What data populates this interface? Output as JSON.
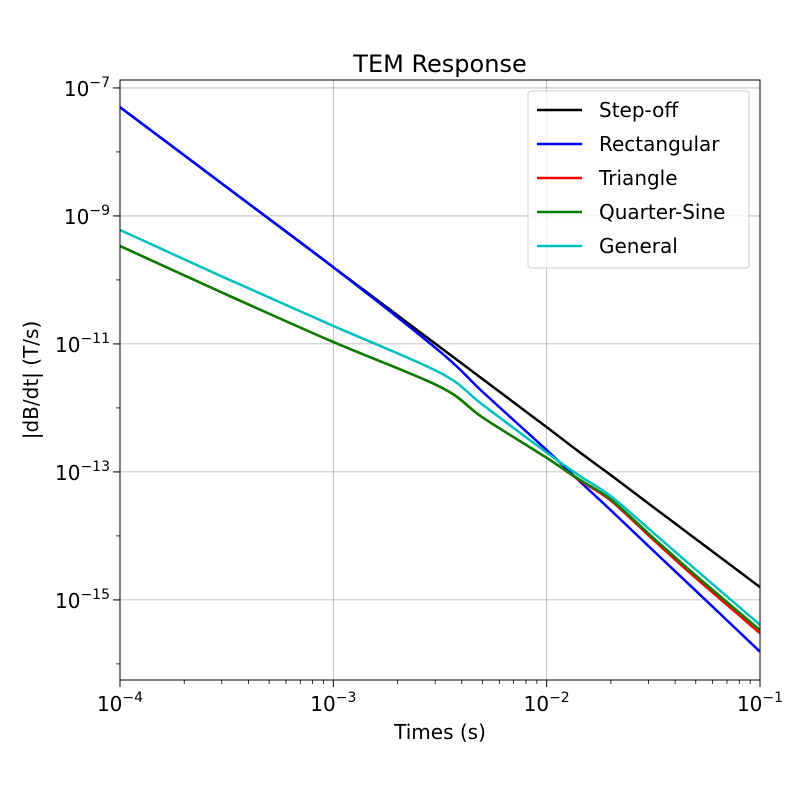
{
  "chart_data": {
    "type": "line",
    "title": "TEM Response",
    "xlabel": "Times (s)",
    "ylabel": "|dB/dt| (T/s)",
    "xscale": "log",
    "yscale": "log",
    "xlim": [
      0.0001,
      0.1
    ],
    "ylim": [
      5.6e-17,
      1.33e-07
    ],
    "grid": true,
    "legend_position": "top-right",
    "x_ticks": [
      {
        "value": 0.0001,
        "base": "10",
        "exp": "−4"
      },
      {
        "value": 0.001,
        "base": "10",
        "exp": "−3"
      },
      {
        "value": 0.01,
        "base": "10",
        "exp": "−2"
      },
      {
        "value": 0.1,
        "base": "10",
        "exp": "−1"
      }
    ],
    "y_ticks": [
      {
        "value": 1e-07,
        "base": "10",
        "exp": "−7"
      },
      {
        "value": 1e-09,
        "base": "10",
        "exp": "−9"
      },
      {
        "value": 1e-11,
        "base": "10",
        "exp": "−11"
      },
      {
        "value": 1e-13,
        "base": "10",
        "exp": "−13"
      },
      {
        "value": 1e-15,
        "base": "10",
        "exp": "−15"
      }
    ],
    "x": [
      0.0001,
      0.000316,
      0.001,
      0.00316,
      0.00501,
      0.01,
      0.0141,
      0.02,
      0.0316,
      0.0501,
      0.1
    ],
    "series": [
      {
        "name": "Step-off",
        "color": "#000000",
        "values": [
          5.01e-08,
          2.82e-09,
          1.58e-10,
          8.91e-12,
          2.82e-12,
          5.01e-13,
          2.09e-13,
          8.91e-14,
          2.82e-14,
          8.91e-15,
          1.58e-15
        ]
      },
      {
        "name": "Rectangular",
        "color": "#0000ff",
        "values": [
          5.01e-08,
          2.82e-09,
          1.58e-10,
          7.59e-12,
          1.78e-12,
          2.19e-13,
          7.41e-14,
          2.51e-14,
          5.89e-15,
          1.38e-15,
          1.55e-16
        ]
      },
      {
        "name": "Triangle",
        "color": "#ff0000",
        "values": [
          3.39e-10,
          5.89e-11,
          1.07e-11,
          2.14e-12,
          7.08e-13,
          1.66e-13,
          7.59e-14,
          3.55e-14,
          8.71e-15,
          2.19e-15,
          3.02e-16
        ]
      },
      {
        "name": "Quarter-Sine",
        "color": "#008000",
        "values": [
          3.39e-10,
          5.89e-11,
          1.07e-11,
          2.14e-12,
          7.08e-13,
          1.66e-13,
          7.76e-14,
          3.72e-14,
          9.33e-15,
          2.4e-15,
          3.39e-16
        ]
      },
      {
        "name": "General",
        "color": "#00bfbf",
        "values": [
          6.03e-10,
          1.05e-10,
          1.91e-11,
          3.55e-12,
          1.12e-12,
          2e-13,
          8.91e-14,
          4.17e-14,
          1.12e-14,
          2.95e-15,
          4.07e-16
        ]
      }
    ]
  }
}
